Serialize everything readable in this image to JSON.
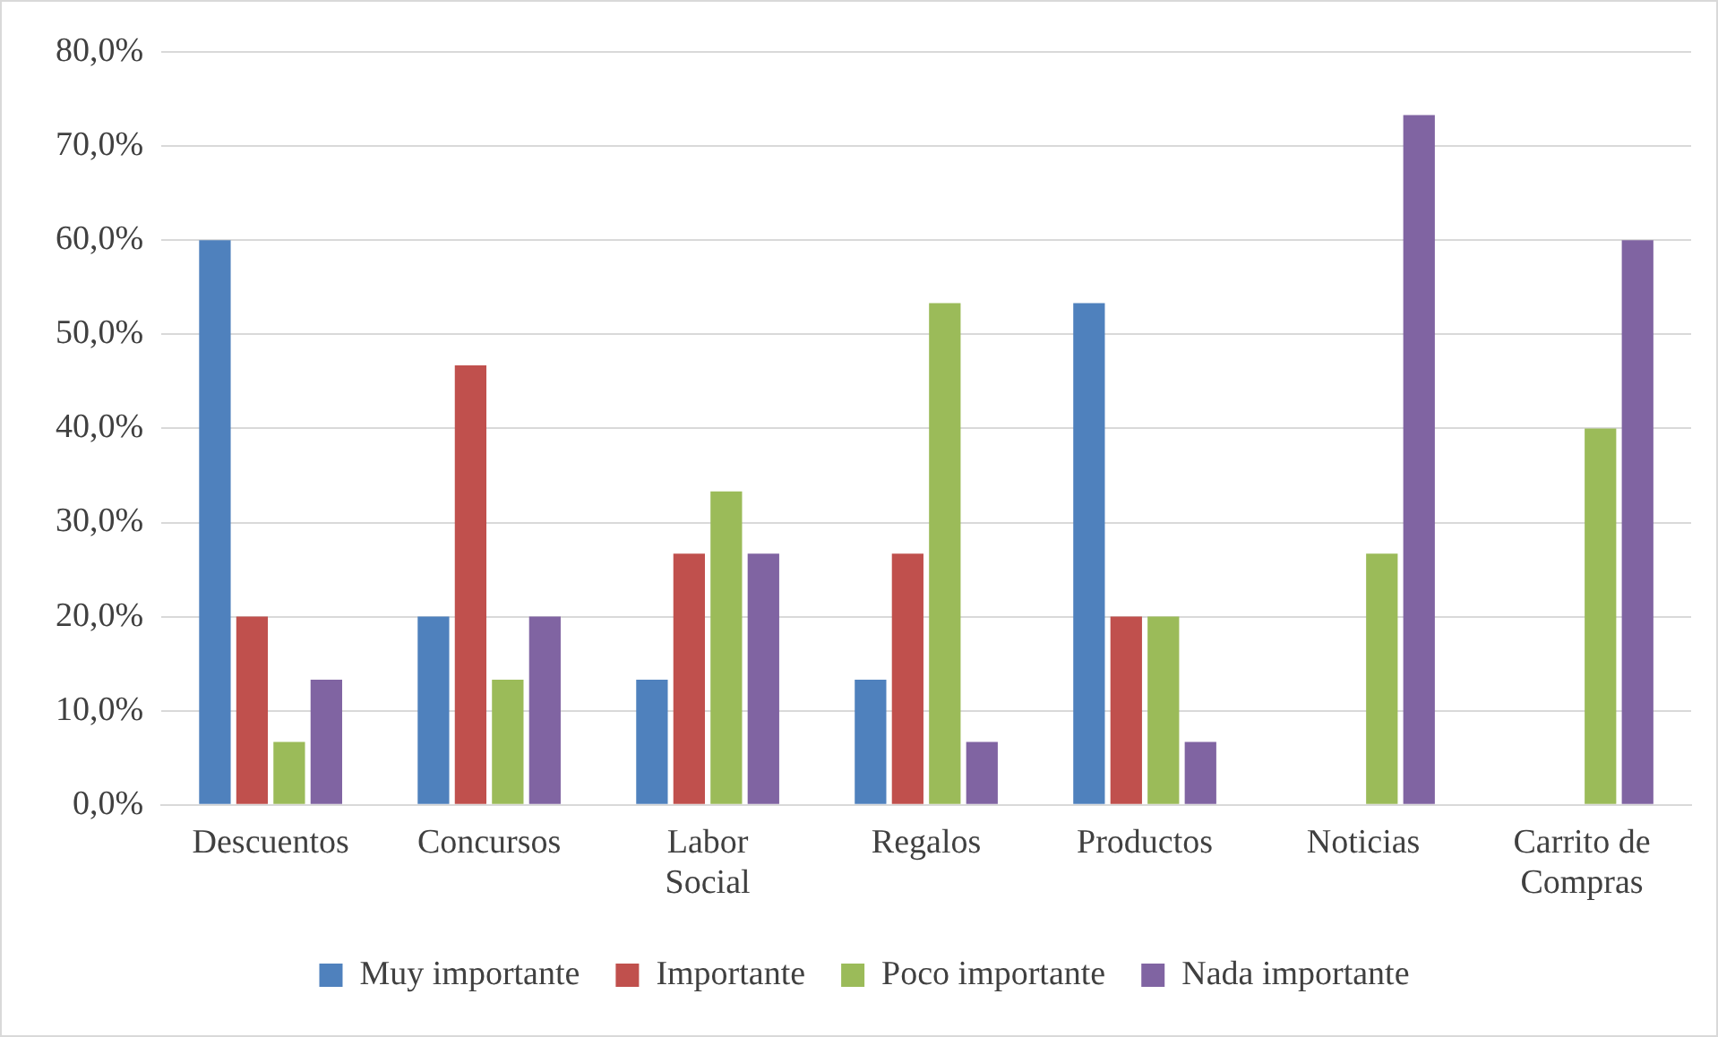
{
  "chart_data": {
    "type": "bar",
    "categories": [
      "Descuentos",
      "Concursos",
      "Labor Social",
      "Regalos",
      "Productos",
      "Noticias",
      "Carrito de Compras"
    ],
    "series": [
      {
        "name": "Muy importante",
        "color": "#4f81bd",
        "values": [
          60,
          20,
          13.3,
          13.3,
          53.3,
          0,
          0
        ]
      },
      {
        "name": "Importante",
        "color": "#c0504d",
        "values": [
          20,
          46.7,
          26.7,
          26.7,
          20,
          0,
          0
        ]
      },
      {
        "name": "Poco importante",
        "color": "#9bbb59",
        "values": [
          6.7,
          13.3,
          33.3,
          53.3,
          20,
          26.7,
          40
        ]
      },
      {
        "name": "Nada importante",
        "color": "#8064a2",
        "values": [
          13.3,
          20,
          26.7,
          6.7,
          6.7,
          73.3,
          60
        ]
      }
    ],
    "ylim": [
      0,
      80
    ],
    "yticks": [
      {
        "value": 0,
        "label": "0,0%"
      },
      {
        "value": 10,
        "label": "10,0%"
      },
      {
        "value": 20,
        "label": "20,0%"
      },
      {
        "value": 30,
        "label": "30,0%"
      },
      {
        "value": 40,
        "label": "40,0%"
      },
      {
        "value": 50,
        "label": "50,0%"
      },
      {
        "value": 60,
        "label": "60,0%"
      },
      {
        "value": 70,
        "label": "70,0%"
      },
      {
        "value": 80,
        "label": "80,0%"
      }
    ],
    "grid": "y",
    "legend": "bottom"
  }
}
